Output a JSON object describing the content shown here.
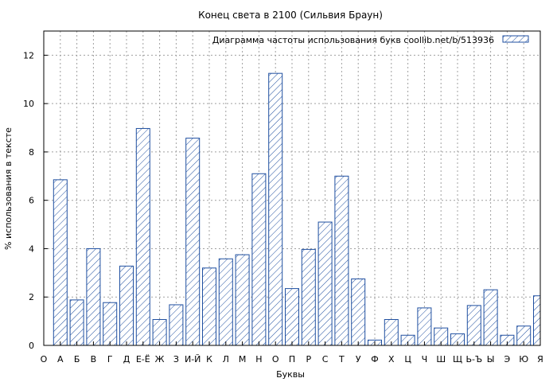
{
  "chart_data": {
    "type": "bar",
    "title": "Конец света в 2100 (Сильвия Браун)",
    "xlabel": "Буквы",
    "ylabel": "% использования в тексте",
    "legend": {
      "label": "Диаграмма частоты использования букв  coollib.net/b/513936",
      "position": "top-right"
    },
    "categories": [
      "О",
      "А",
      "Б",
      "В",
      "Г",
      "Д",
      "Е-Ё",
      "Ж",
      "З",
      "И-Й",
      "К",
      "Л",
      "М",
      "Н",
      "О",
      "П",
      "Р",
      "С",
      "Т",
      "У",
      "Ф",
      "Х",
      "Ц",
      "Ч",
      "Ш",
      "Щ",
      "Ь-Ъ",
      "Ы",
      "Э",
      "Ю",
      "Я"
    ],
    "values": [
      null,
      6.85,
      1.88,
      4.0,
      1.77,
      3.28,
      8.97,
      1.07,
      1.68,
      8.57,
      3.2,
      3.58,
      3.75,
      7.1,
      11.25,
      2.35,
      3.97,
      5.1,
      7.0,
      2.75,
      0.22,
      1.07,
      0.42,
      1.55,
      0.72,
      0.48,
      1.65,
      2.3,
      0.42,
      0.8,
      2.05
    ],
    "ylim": [
      0,
      13
    ],
    "yticks": [
      0,
      2,
      4,
      6,
      8,
      10,
      12
    ],
    "grid": true,
    "colors": {
      "bar_stroke": "#1f4fa0",
      "hatch": "#1f4fa0"
    }
  }
}
